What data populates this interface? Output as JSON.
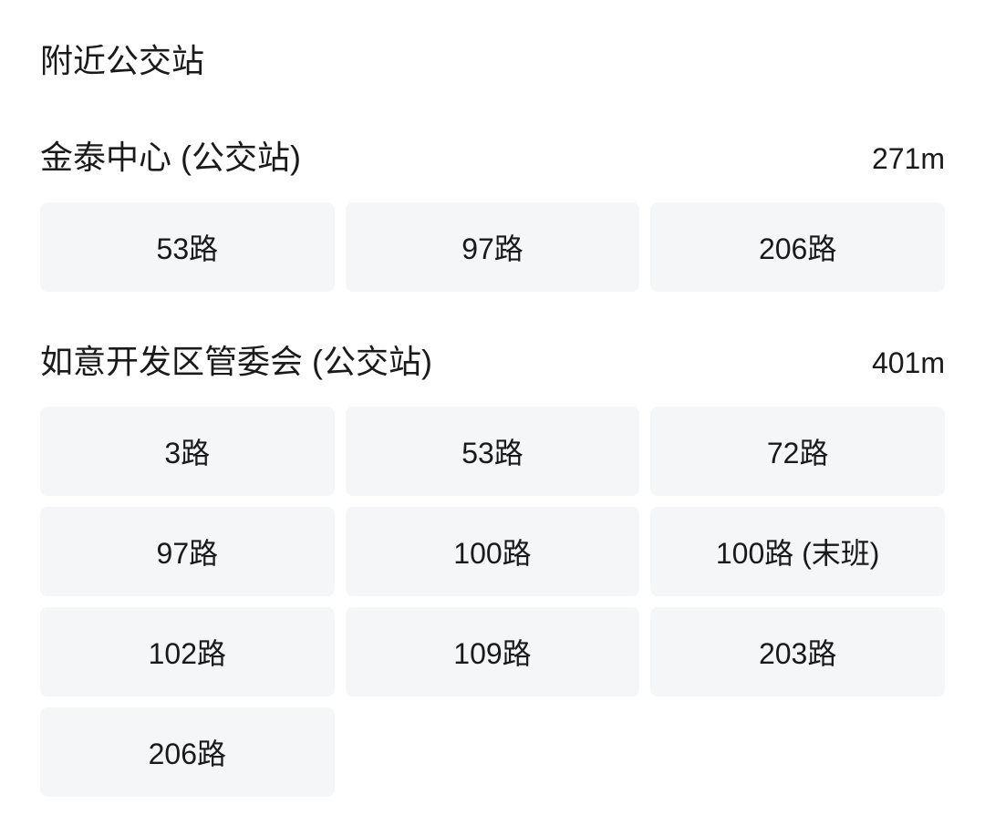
{
  "section_title": "附近公交站",
  "stations": [
    {
      "name": "金泰中心 (公交站)",
      "distance": "271m",
      "routes": [
        "53路",
        "97路",
        "206路"
      ]
    },
    {
      "name": "如意开发区管委会 (公交站)",
      "distance": "401m",
      "routes": [
        "3路",
        "53路",
        "72路",
        "97路",
        "100路",
        "100路 (末班)",
        "102路",
        "109路",
        "203路",
        "206路"
      ]
    }
  ],
  "colors": {
    "background": "#ffffff",
    "text": "#1a1a1a",
    "route_bg": "#f5f6f8"
  }
}
